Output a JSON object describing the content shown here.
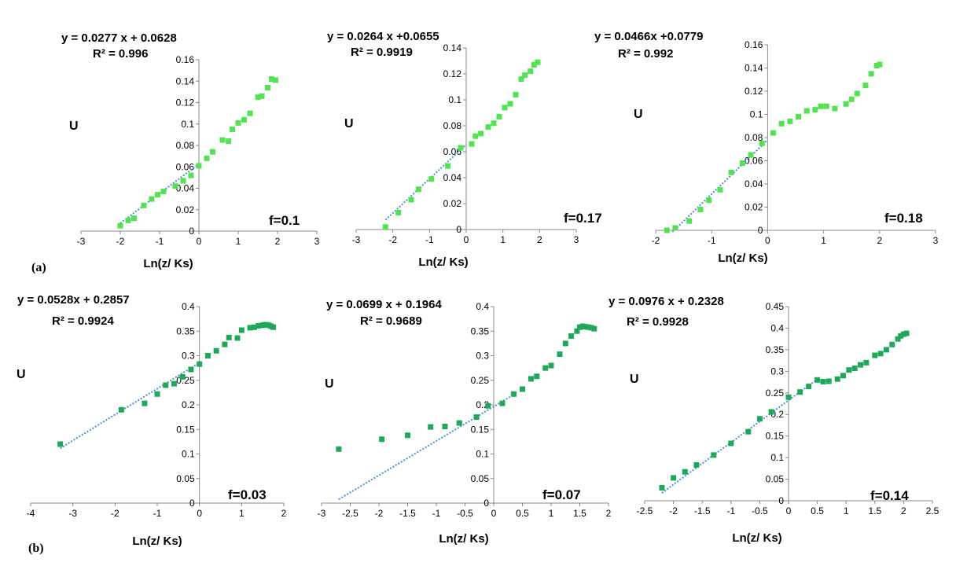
{
  "figure": {
    "panel_labels": [
      "(a)",
      "(b)"
    ]
  },
  "chart_data": [
    {
      "type": "scatter",
      "title": "",
      "equation": "y = 0.0277 x + 0.0628",
      "r2": "R² = 0.996",
      "xlabel": "Ln(z/ Ks)",
      "ylabel": "U",
      "f_label": "f=0.1",
      "xlim": [
        -3,
        3
      ],
      "ylim": [
        0,
        0.16
      ],
      "xticks": [
        "-3",
        "-2",
        "-1",
        "0",
        "1",
        "2",
        "3"
      ],
      "yticks": [
        "0",
        "0.02",
        "0.04",
        "0.06",
        "0.08",
        "0.1",
        "0.12",
        "0.14",
        "0.16"
      ],
      "point_color": "#52e352",
      "fit": {
        "slope": 0.0277,
        "intercept": 0.0628,
        "x_range": [
          -2.0,
          0.0
        ]
      },
      "points": [
        [
          -2.0,
          0.005
        ],
        [
          -1.8,
          0.01
        ],
        [
          -1.65,
          0.012
        ],
        [
          -1.4,
          0.024
        ],
        [
          -1.2,
          0.03
        ],
        [
          -1.05,
          0.034
        ],
        [
          -0.9,
          0.037
        ],
        [
          -0.6,
          0.042
        ],
        [
          -0.4,
          0.047
        ],
        [
          -0.2,
          0.052
        ],
        [
          0,
          0.061
        ],
        [
          0.2,
          0.068
        ],
        [
          0.35,
          0.074
        ],
        [
          0.6,
          0.085
        ],
        [
          0.75,
          0.084
        ],
        [
          0.85,
          0.095
        ],
        [
          1.0,
          0.101
        ],
        [
          1.15,
          0.104
        ],
        [
          1.3,
          0.11
        ],
        [
          1.5,
          0.125
        ],
        [
          1.6,
          0.126
        ],
        [
          1.75,
          0.134
        ],
        [
          1.85,
          0.142
        ],
        [
          1.95,
          0.141
        ]
      ]
    },
    {
      "type": "scatter",
      "title": "",
      "equation": "y = 0.0264 x +0.0655",
      "r2": "R² = 0.9919",
      "xlabel": "Ln(z/ Ks)",
      "ylabel": "U",
      "f_label": "f=0.17",
      "xlim": [
        -3,
        3
      ],
      "ylim": [
        0,
        0.14
      ],
      "xticks": [
        "-3",
        "-2",
        "-1",
        "0",
        "1",
        "2",
        "3"
      ],
      "yticks": [
        "0",
        "0.02",
        "0.04",
        "0.06",
        "0.08",
        "0.1",
        "0.12",
        "0.14"
      ],
      "point_color": "#52e352",
      "fit": {
        "slope": 0.0264,
        "intercept": 0.0655,
        "x_range": [
          -2.2,
          0.0
        ]
      },
      "points": [
        [
          -2.2,
          0.002
        ],
        [
          -1.85,
          0.013
        ],
        [
          -1.5,
          0.023
        ],
        [
          -1.3,
          0.031
        ],
        [
          -0.95,
          0.039
        ],
        [
          -0.5,
          0.049
        ],
        [
          -0.15,
          0.063
        ],
        [
          0.15,
          0.066
        ],
        [
          0.25,
          0.072
        ],
        [
          0.4,
          0.074
        ],
        [
          0.6,
          0.079
        ],
        [
          0.75,
          0.082
        ],
        [
          0.9,
          0.087
        ],
        [
          1.05,
          0.094
        ],
        [
          1.2,
          0.097
        ],
        [
          1.35,
          0.104
        ],
        [
          1.5,
          0.116
        ],
        [
          1.6,
          0.119
        ],
        [
          1.75,
          0.122
        ],
        [
          1.85,
          0.127
        ],
        [
          1.95,
          0.129
        ]
      ]
    },
    {
      "type": "scatter",
      "title": "",
      "equation": "y = 0.0466x +0.0779",
      "r2": "R² = 0.992",
      "xlabel": "Ln(z/ Ks)",
      "ylabel": "U",
      "f_label": "f=0.18",
      "xlim": [
        -2,
        3
      ],
      "ylim": [
        0,
        0.16
      ],
      "xticks": [
        "-2",
        "-1",
        "0",
        "1",
        "2",
        "3"
      ],
      "yticks": [
        "0",
        "0.02",
        "0.04",
        "0.06",
        "0.08",
        "0.1",
        "0.12",
        "0.14",
        "0.16"
      ],
      "point_color": "#52e352",
      "fit": {
        "slope": 0.0466,
        "intercept": 0.0779,
        "x_range": [
          -1.7,
          0.0
        ]
      },
      "points": [
        [
          -1.8,
          0.0
        ],
        [
          -1.65,
          0.002
        ],
        [
          -1.4,
          0.008
        ],
        [
          -1.2,
          0.018
        ],
        [
          -1.05,
          0.026
        ],
        [
          -0.85,
          0.035
        ],
        [
          -0.65,
          0.05
        ],
        [
          -0.45,
          0.058
        ],
        [
          -0.3,
          0.065
        ],
        [
          -0.1,
          0.075
        ],
        [
          0.1,
          0.084
        ],
        [
          0.25,
          0.092
        ],
        [
          0.4,
          0.094
        ],
        [
          0.55,
          0.098
        ],
        [
          0.7,
          0.103
        ],
        [
          0.85,
          0.104
        ],
        [
          0.95,
          0.107
        ],
        [
          1.05,
          0.107
        ],
        [
          1.2,
          0.105
        ],
        [
          1.4,
          0.109
        ],
        [
          1.5,
          0.113
        ],
        [
          1.6,
          0.118
        ],
        [
          1.75,
          0.125
        ],
        [
          1.85,
          0.135
        ],
        [
          1.95,
          0.142
        ],
        [
          2.0,
          0.143
        ]
      ]
    },
    {
      "type": "scatter",
      "title": "",
      "equation": "y = 0.0528x + 0.2857",
      "r2": "R² = 0.9924",
      "xlabel": "Ln(z/ Ks)",
      "ylabel": "U",
      "f_label": "f=0.03",
      "xlim": [
        -4,
        2
      ],
      "ylim": [
        0,
        0.4
      ],
      "xticks": [
        "-4",
        "-3",
        "-2",
        "-1",
        "0",
        "1",
        "2"
      ],
      "yticks": [
        "0",
        "0.05",
        "0.1",
        "0.15",
        "0.2",
        "0.25",
        "0.3",
        "0.35",
        "0.4"
      ],
      "point_color": "#1fa85a",
      "fit": {
        "slope": 0.0528,
        "intercept": 0.2857,
        "x_range": [
          -3.3,
          0.0
        ]
      },
      "points": [
        [
          -3.3,
          0.12
        ],
        [
          -1.85,
          0.19
        ],
        [
          -1.3,
          0.203
        ],
        [
          -1.0,
          0.222
        ],
        [
          -0.8,
          0.24
        ],
        [
          -0.6,
          0.243
        ],
        [
          -0.4,
          0.257
        ],
        [
          -0.2,
          0.272
        ],
        [
          0.0,
          0.283
        ],
        [
          0.2,
          0.3
        ],
        [
          0.4,
          0.31
        ],
        [
          0.6,
          0.323
        ],
        [
          0.7,
          0.337
        ],
        [
          0.9,
          0.336
        ],
        [
          1.0,
          0.352
        ],
        [
          1.2,
          0.357
        ],
        [
          1.3,
          0.358
        ],
        [
          1.4,
          0.361
        ],
        [
          1.5,
          0.362
        ],
        [
          1.55,
          0.363
        ],
        [
          1.6,
          0.363
        ],
        [
          1.65,
          0.362
        ],
        [
          1.7,
          0.36
        ],
        [
          1.75,
          0.358
        ]
      ]
    },
    {
      "type": "scatter",
      "title": "",
      "equation": "y = 0.0699 x + 0.1964",
      "r2": "R² = 0.9689",
      "xlabel": "Ln(z/ Ks)",
      "ylabel": "U",
      "f_label": "f=0.07",
      "xlim": [
        -3,
        2
      ],
      "ylim": [
        0,
        0.4
      ],
      "xticks": [
        "-3",
        "-2.5",
        "-2",
        "-1.5",
        "-1",
        "-0.5",
        "0",
        "0.5",
        "1",
        "1.5",
        "2"
      ],
      "yticks": [
        "0",
        "0.05",
        "0.1",
        "0.15",
        "0.2",
        "0.25",
        "0.3",
        "0.35",
        "0.4"
      ],
      "point_color": "#1fa85a",
      "fit": {
        "slope": 0.0699,
        "intercept": 0.1964,
        "x_range": [
          -2.7,
          0.3
        ]
      },
      "points": [
        [
          -2.7,
          0.11
        ],
        [
          -1.95,
          0.13
        ],
        [
          -1.5,
          0.138
        ],
        [
          -1.1,
          0.155
        ],
        [
          -0.85,
          0.156
        ],
        [
          -0.6,
          0.163
        ],
        [
          -0.3,
          0.175
        ],
        [
          -0.1,
          0.198
        ],
        [
          0.15,
          0.203
        ],
        [
          0.35,
          0.222
        ],
        [
          0.5,
          0.232
        ],
        [
          0.65,
          0.253
        ],
        [
          0.75,
          0.258
        ],
        [
          0.9,
          0.275
        ],
        [
          1.0,
          0.28
        ],
        [
          1.15,
          0.303
        ],
        [
          1.25,
          0.325
        ],
        [
          1.35,
          0.34
        ],
        [
          1.45,
          0.35
        ],
        [
          1.5,
          0.358
        ],
        [
          1.55,
          0.36
        ],
        [
          1.6,
          0.359
        ],
        [
          1.65,
          0.358
        ],
        [
          1.7,
          0.357
        ],
        [
          1.75,
          0.355
        ]
      ]
    },
    {
      "type": "scatter",
      "title": "",
      "equation": "y = 0.0976 x + 0.2328",
      "r2": "R² = 0.9928",
      "xlabel": "Ln(z/ Ks)",
      "ylabel": "U",
      "f_label": "f=0.14",
      "xlim": [
        -2.5,
        2.5
      ],
      "ylim": [
        0,
        0.45
      ],
      "xticks": [
        "-2.5",
        "-2",
        "-1.5",
        "-1",
        "-0.5",
        "0",
        "0.5",
        "1",
        "1.5",
        "2",
        "2.5"
      ],
      "yticks": [
        "0",
        "0.05",
        "0.1",
        "0.15",
        "0.2",
        "0.25",
        "0.3",
        "0.35",
        "0.4",
        "0.45"
      ],
      "point_color": "#1fa85a",
      "fit": {
        "slope": 0.0976,
        "intercept": 0.2328,
        "x_range": [
          -2.2,
          0.5
        ]
      },
      "points": [
        [
          -2.2,
          0.03
        ],
        [
          -2.0,
          0.053
        ],
        [
          -1.8,
          0.067
        ],
        [
          -1.6,
          0.083
        ],
        [
          -1.3,
          0.106
        ],
        [
          -1.0,
          0.133
        ],
        [
          -0.7,
          0.16
        ],
        [
          -0.5,
          0.19
        ],
        [
          -0.3,
          0.206
        ],
        [
          0.0,
          0.24
        ],
        [
          0.2,
          0.252
        ],
        [
          0.35,
          0.265
        ],
        [
          0.5,
          0.28
        ],
        [
          0.6,
          0.276
        ],
        [
          0.7,
          0.277
        ],
        [
          0.85,
          0.282
        ],
        [
          0.95,
          0.29
        ],
        [
          1.05,
          0.303
        ],
        [
          1.15,
          0.307
        ],
        [
          1.25,
          0.315
        ],
        [
          1.35,
          0.32
        ],
        [
          1.5,
          0.337
        ],
        [
          1.6,
          0.341
        ],
        [
          1.7,
          0.35
        ],
        [
          1.8,
          0.362
        ],
        [
          1.9,
          0.375
        ],
        [
          1.95,
          0.382
        ],
        [
          2.0,
          0.386
        ],
        [
          2.05,
          0.388
        ]
      ]
    }
  ]
}
